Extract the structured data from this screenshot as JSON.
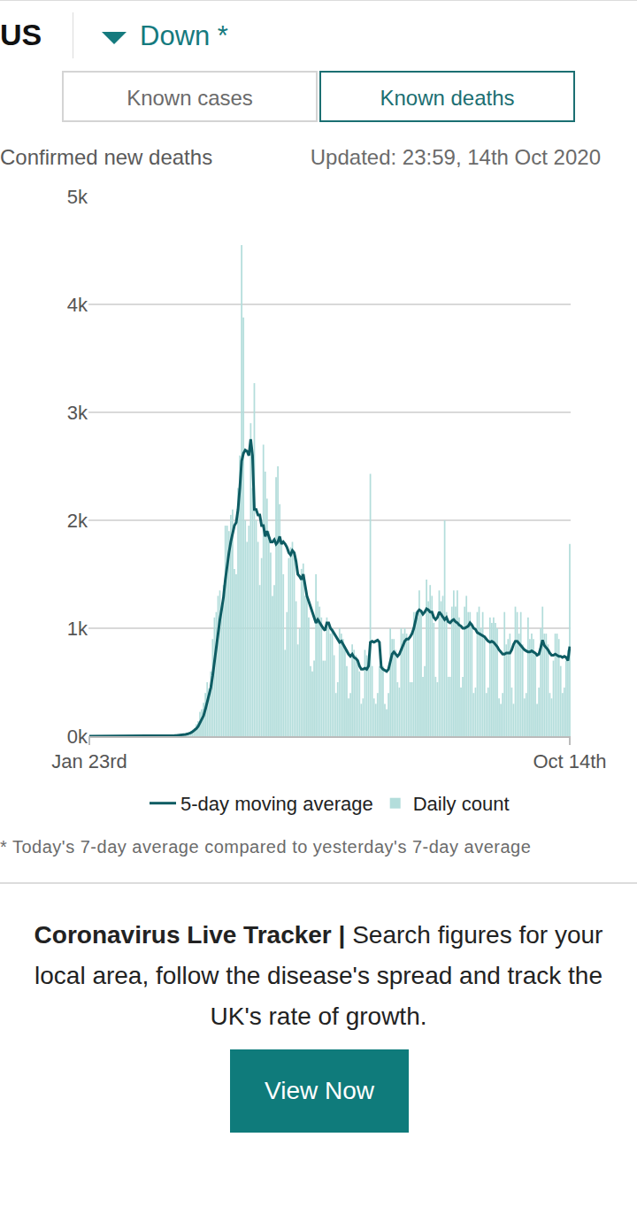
{
  "header": {
    "country": "US",
    "trend": "Down *"
  },
  "tabs": [
    "Known cases",
    "Known deaths"
  ],
  "selected_tab": "Known deaths",
  "updated": "Updated: 23:59, 14th Oct 2020",
  "footnote": "* Today's 7-day average compared to yesterday's 7-day average",
  "promo": {
    "title": "Coronavirus Live Tracker |",
    "text": "Search figures for your local area, follow the disease's spread and track the UK's rate of growth.",
    "button": "View Now"
  },
  "chart_data": {
    "type": "bar",
    "title": "Confirmed new deaths",
    "categories": [
      "Jan 23rd",
      null,
      null,
      null,
      null,
      null,
      null,
      null,
      null,
      null,
      null,
      null,
      null,
      null,
      null,
      null,
      null,
      null,
      null,
      null,
      null,
      null,
      null,
      null,
      null,
      null,
      null,
      null,
      null,
      null,
      null,
      null,
      null,
      null,
      null,
      null,
      null,
      null,
      null,
      null,
      null,
      null,
      null,
      null,
      null,
      null,
      null,
      null,
      null,
      null,
      null,
      null,
      null,
      null,
      null,
      null,
      null,
      null,
      null,
      null,
      null,
      null,
      null,
      null,
      null,
      null,
      null,
      null,
      null,
      null,
      null,
      null,
      null,
      null,
      null,
      null,
      null,
      null,
      null,
      null,
      null,
      null,
      null,
      null,
      null,
      null,
      null,
      null,
      null,
      null,
      null,
      null,
      null,
      null,
      null,
      null,
      null,
      null,
      null,
      null,
      null,
      null,
      null,
      null,
      null,
      null,
      null,
      null,
      null,
      null,
      null,
      null,
      null,
      null,
      null,
      null,
      null,
      null,
      null,
      null,
      null,
      null,
      null,
      null,
      null,
      null,
      null,
      null,
      null,
      null,
      null,
      null,
      null,
      null,
      null,
      null,
      null,
      null,
      null,
      null,
      null,
      null,
      null,
      null,
      null,
      null,
      null,
      null,
      null,
      null,
      null,
      null,
      null,
      null,
      null,
      null,
      null,
      null,
      null,
      null,
      null,
      null,
      null,
      null,
      null,
      null,
      null,
      null,
      null,
      null,
      null,
      null,
      null,
      null,
      null,
      null,
      null,
      null,
      null,
      null,
      null,
      null,
      null,
      null,
      null,
      null,
      null,
      null,
      null,
      null,
      null,
      null,
      null,
      null,
      null,
      null,
      null,
      null,
      null,
      null,
      null,
      null,
      null,
      null,
      null,
      null,
      null,
      null,
      null,
      null,
      null,
      null,
      null,
      null,
      null,
      null,
      null,
      null,
      null,
      null,
      null,
      null,
      null,
      null,
      null,
      null,
      null,
      null,
      null,
      null,
      null,
      null,
      null,
      null,
      null,
      null,
      null,
      null,
      null,
      null,
      null,
      null,
      null,
      null,
      null,
      null,
      null,
      null,
      null,
      null,
      null,
      null,
      null,
      null,
      null,
      null,
      null,
      null,
      null,
      null,
      null,
      null,
      null,
      null,
      null,
      "Oct 14th"
    ],
    "series": [
      {
        "name": "5-day moving average",
        "type": "line",
        "color": "#0e5c63",
        "values": [
          0,
          0,
          0,
          0,
          0,
          0,
          0,
          0,
          0,
          0,
          0,
          0,
          0,
          0,
          0,
          0,
          0,
          0,
          0,
          0,
          0,
          0,
          0,
          0,
          0,
          0,
          0,
          0,
          0,
          0,
          0,
          0,
          0,
          0,
          0,
          0,
          0,
          1,
          1,
          2,
          2,
          3,
          4,
          5,
          5,
          5,
          6,
          6,
          7,
          8,
          9,
          11,
          13,
          17,
          20,
          25,
          32,
          42,
          55,
          70,
          90,
          120,
          150,
          190,
          250,
          320,
          380,
          450,
          560,
          700,
          830,
          950,
          1080,
          1180,
          1290,
          1450,
          1600,
          1700,
          1800,
          1880,
          1950,
          1980,
          2100,
          2300,
          2550,
          2620,
          2650,
          2640,
          2600,
          2750,
          2600,
          2100,
          2100,
          2050,
          2050,
          1950,
          1950,
          1850,
          1900,
          1850,
          1800,
          1800,
          1820,
          1780,
          1800,
          1850,
          1780,
          1800,
          1780,
          1750,
          1700,
          1680,
          1720,
          1700,
          1620,
          1500,
          1480,
          1450,
          1500,
          1400,
          1300,
          1250,
          1200,
          1150,
          1100,
          1050,
          1080,
          1050,
          1020,
          1000,
          980,
          1050,
          1050,
          1000,
          980,
          950,
          920,
          900,
          870,
          880,
          850,
          820,
          780,
          760,
          740,
          760,
          730,
          720,
          700,
          650,
          620,
          620,
          630,
          620,
          650,
          870,
          880,
          870,
          880,
          890,
          870,
          640,
          620,
          610,
          600,
          620,
          680,
          760,
          780,
          760,
          740,
          760,
          800,
          850,
          880,
          900,
          900,
          920,
          950,
          1000,
          1080,
          1150,
          1170,
          1160,
          1130,
          1150,
          1180,
          1170,
          1150,
          1150,
          1100,
          1080,
          1100,
          1150,
          1130,
          1100,
          1080,
          1100,
          1060,
          1050,
          1070,
          1080,
          1060,
          1050,
          1030,
          1020,
          1000,
          1000,
          1010,
          1020,
          1050,
          1030,
          1000,
          990,
          960,
          950,
          940,
          930,
          920,
          900,
          880,
          870,
          880,
          870,
          850,
          830,
          800,
          780,
          760,
          760,
          770,
          770,
          770,
          800,
          850,
          880,
          880,
          860,
          840,
          820,
          800,
          790,
          780,
          780,
          790,
          780,
          770,
          750,
          760,
          820,
          890,
          840,
          820,
          800,
          770,
          750,
          750,
          760,
          750,
          740,
          740,
          730,
          740,
          730,
          700,
          830
        ]
      },
      {
        "name": "Daily count",
        "type": "bar",
        "color": "#b3dddb",
        "values": [
          0,
          0,
          0,
          0,
          0,
          0,
          0,
          0,
          0,
          0,
          0,
          0,
          0,
          0,
          0,
          0,
          0,
          0,
          0,
          0,
          0,
          0,
          0,
          0,
          0,
          0,
          0,
          0,
          0,
          0,
          0,
          0,
          0,
          0,
          0,
          0,
          0,
          1,
          0,
          1,
          4,
          3,
          2,
          5,
          2,
          4,
          3,
          7,
          5,
          8,
          11,
          10,
          12,
          22,
          18,
          30,
          45,
          60,
          75,
          110,
          140,
          225,
          250,
          310,
          400,
          500,
          440,
          600,
          900,
          1100,
          1150,
          1300,
          1350,
          1200,
          1400,
          1950,
          1950,
          1900,
          2050,
          2100,
          1550,
          1500,
          2300,
          2600,
          4550,
          3880,
          2000,
          1800,
          1950,
          2900,
          2300,
          3270,
          2000,
          1800,
          1400,
          1650,
          2700,
          2450,
          2200,
          1900,
          1700,
          1300,
          1400,
          2400,
          2500,
          2150,
          1800,
          1500,
          800,
          1150,
          1650,
          1750,
          1800,
          1650,
          1250,
          850,
          1000,
          1550,
          1600,
          1300,
          1300,
          1100,
          650,
          600,
          700,
          1500,
          1250,
          1200,
          1100,
          700,
          700,
          1100,
          1050,
          950,
          1000,
          750,
          400,
          500,
          1000,
          950,
          900,
          800,
          650,
          350,
          400,
          850,
          800,
          750,
          700,
          600,
          300,
          350,
          800,
          750,
          650,
          2430,
          650,
          350,
          300,
          400,
          650,
          700,
          650,
          300,
          250,
          400,
          1000,
          900,
          900,
          800,
          500,
          450,
          1000,
          950,
          1000,
          950,
          900,
          500,
          500,
          1150,
          1150,
          1100,
          1350,
          1150,
          550,
          650,
          1450,
          1250,
          1400,
          1300,
          1050,
          550,
          500,
          1350,
          1250,
          1300,
          2000,
          1150,
          550,
          550,
          1200,
          1350,
          1200,
          1350,
          1100,
          450,
          550,
          1200,
          1300,
          1150,
          1150,
          1050,
          400,
          450,
          1150,
          1200,
          1000,
          1150,
          900,
          400,
          450,
          1100,
          1050,
          1100,
          1050,
          1000,
          350,
          300,
          400,
          1150,
          850,
          900,
          950,
          450,
          300,
          1200,
          1150,
          950,
          1150,
          850,
          350,
          400,
          1100,
          900,
          950,
          900,
          750,
          300,
          450,
          1000,
          1200,
          950,
          950,
          850,
          400,
          350,
          700,
          950,
          950,
          900,
          650,
          400,
          450,
          700,
          800,
          1780
        ]
      }
    ],
    "ylim": [
      0,
      5000
    ],
    "yticks": [
      {
        "value": 0,
        "label": "0k"
      },
      {
        "value": 1000,
        "label": "1k"
      },
      {
        "value": 2000,
        "label": "2k"
      },
      {
        "value": 3000,
        "label": "3k"
      },
      {
        "value": 4000,
        "label": "4k"
      },
      {
        "value": 5000,
        "label": "5k"
      }
    ],
    "grid": true,
    "legend": "bottom"
  }
}
